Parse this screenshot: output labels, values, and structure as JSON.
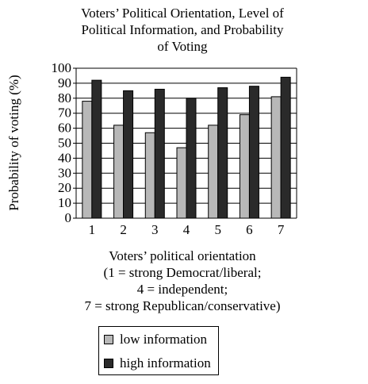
{
  "chart_data": {
    "type": "bar",
    "title_lines": [
      "Voters’ Political Orientation, Level of",
      "Political Information, and Probability",
      "of Voting"
    ],
    "ylabel": "Probability of voting (%)",
    "xlabel_lines": [
      "Voters’ political orientation",
      "(1 = strong Democrat/liberal;",
      "4 = independent;",
      "7 = strong Republican/conservative)"
    ],
    "categories": [
      "1",
      "2",
      "3",
      "4",
      "5",
      "6",
      "7"
    ],
    "series": [
      {
        "name": "low information",
        "values": [
          78,
          62,
          57,
          47,
          62,
          69,
          81
        ],
        "color": "#b8b8b8"
      },
      {
        "name": "high information",
        "values": [
          92,
          85,
          86,
          80,
          87,
          88,
          94
        ],
        "color": "#2a2a2a"
      }
    ],
    "ylim": [
      0,
      100
    ],
    "yticks": [
      0,
      10,
      20,
      30,
      40,
      50,
      60,
      70,
      80,
      90,
      100
    ],
    "grid": true,
    "legend_position": "bottom"
  }
}
